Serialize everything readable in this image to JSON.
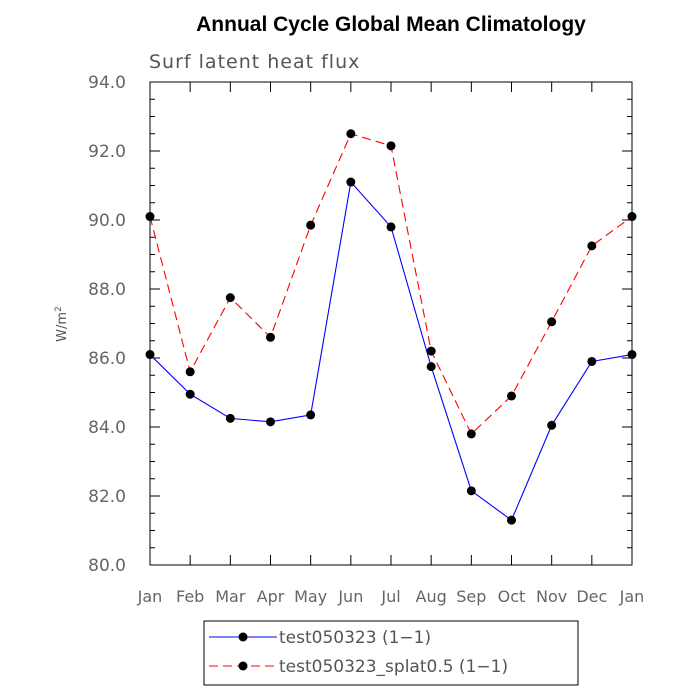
{
  "chart_data": {
    "type": "line",
    "title": "Annual Cycle Global Mean Climatology",
    "subtitle": "Surf latent heat flux",
    "xlabel": "",
    "ylabel": "W/m",
    "ylabel_sup": "2",
    "ylim": [
      80.0,
      94.0
    ],
    "yticks": [
      "80.0",
      "82.0",
      "84.0",
      "86.0",
      "88.0",
      "90.0",
      "92.0",
      "94.0"
    ],
    "categories": [
      "Jan",
      "Feb",
      "Mar",
      "Apr",
      "May",
      "Jun",
      "Jul",
      "Aug",
      "Sep",
      "Oct",
      "Nov",
      "Dec",
      "Jan"
    ],
    "grid": false,
    "legend_position": "bottom",
    "series": [
      {
        "name": "test050323 (1−1)",
        "color": "#0000ff",
        "line_style": "solid",
        "values": [
          86.1,
          84.95,
          84.25,
          84.15,
          84.35,
          91.1,
          89.8,
          85.75,
          82.15,
          81.3,
          84.05,
          85.9,
          86.1
        ]
      },
      {
        "name": "test050323_splat0.5 (1−1)",
        "color": "#ff0000",
        "line_style": "dashed",
        "values": [
          90.1,
          85.6,
          87.75,
          86.6,
          89.85,
          92.5,
          92.15,
          86.2,
          83.8,
          84.9,
          87.05,
          89.25,
          90.1
        ]
      }
    ]
  }
}
